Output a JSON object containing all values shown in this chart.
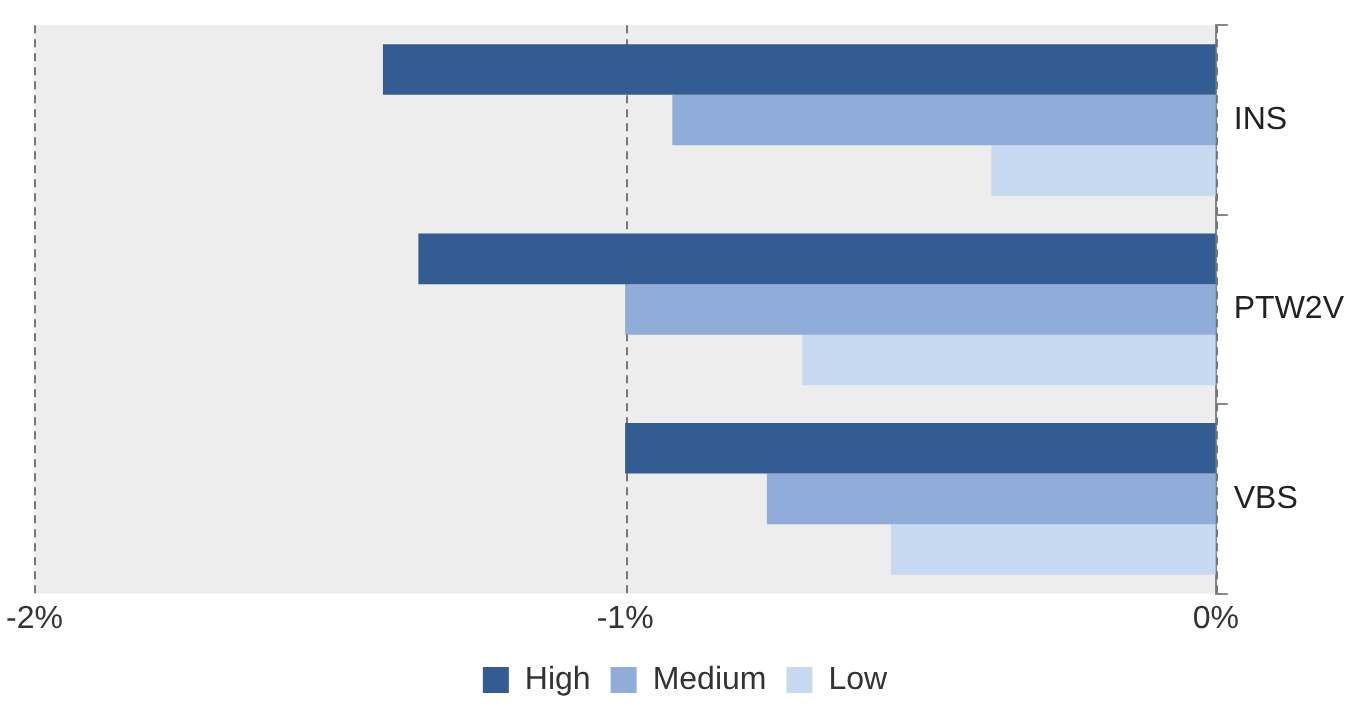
{
  "chart_data": {
    "type": "bar",
    "orientation": "horizontal",
    "categories": [
      "INS",
      "PTW2V",
      "VBS"
    ],
    "series": [
      {
        "name": "High",
        "color": "#335d92",
        "values": [
          -1.41,
          -1.35,
          -1.0
        ]
      },
      {
        "name": "Medium",
        "color": "#8fadd8",
        "values": [
          -0.92,
          -1.0,
          -0.76
        ]
      },
      {
        "name": "Low",
        "color": "#c6d9f1",
        "values": [
          -0.38,
          -0.7,
          -0.55
        ]
      }
    ],
    "xlim": [
      -2,
      0
    ],
    "xticks": [
      {
        "value": -2,
        "label": "-2%"
      },
      {
        "value": -1,
        "label": "-1%"
      },
      {
        "value": 0,
        "label": "0%"
      }
    ],
    "grid": "x",
    "line_style": "dashed",
    "legend": "bottom"
  }
}
